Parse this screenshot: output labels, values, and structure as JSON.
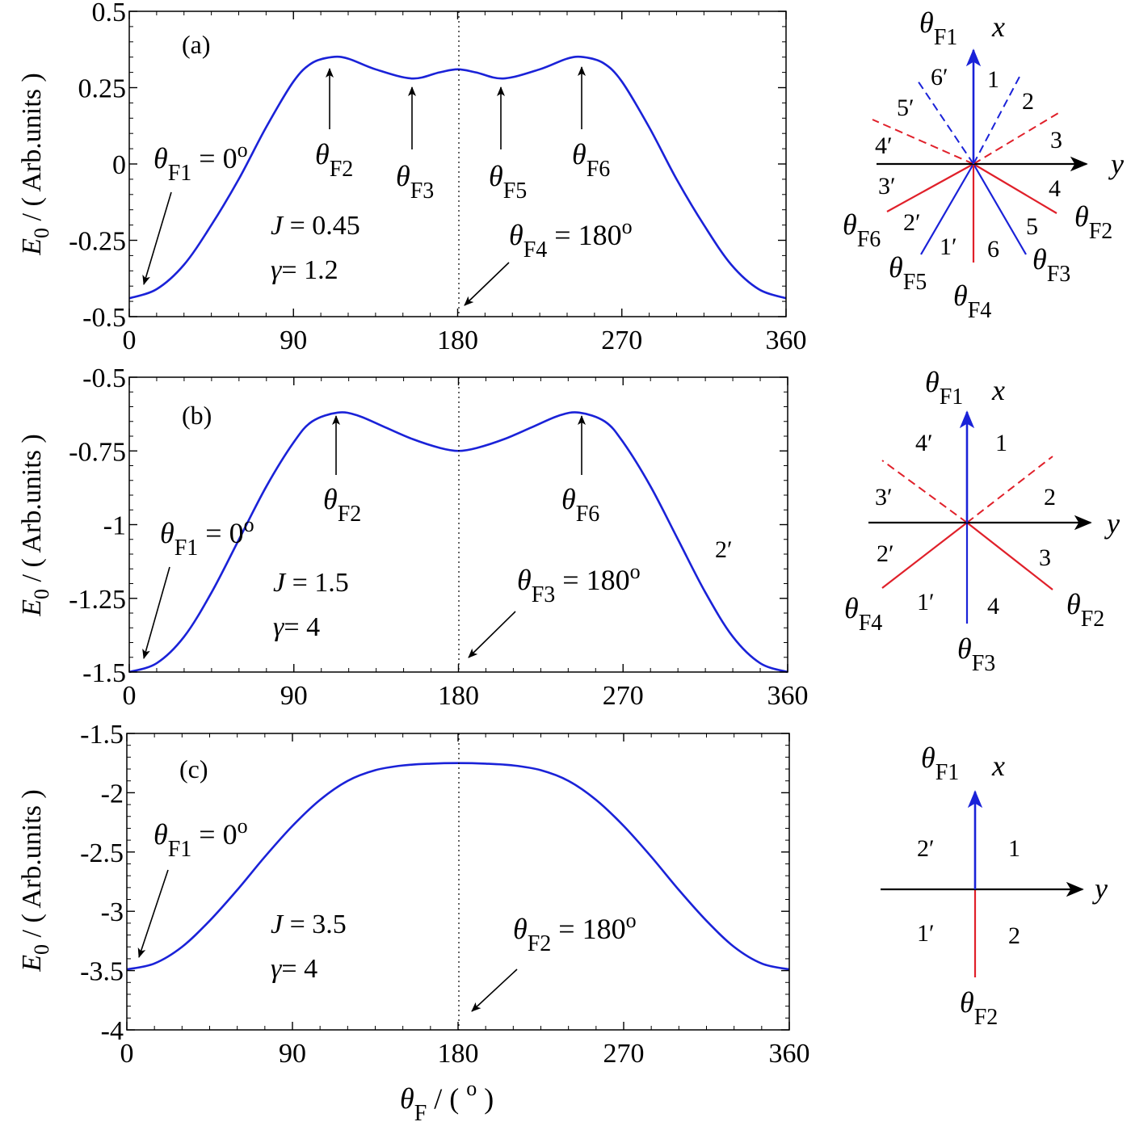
{
  "chart_data": [
    {
      "type": "line",
      "panel": "(a)",
      "xlabel_text": "θ",
      "xlabel_sub": "F",
      "xlabel_unit": " / ( ",
      "xlabel_deg": "o",
      "xlabel_close": " )",
      "ylabel_text": "E",
      "ylabel_sub": "0",
      "ylabel_rest": " / ( Arb.units )",
      "xlim": [
        0,
        360
      ],
      "ylim": [
        -0.5,
        0.5
      ],
      "xticks": [
        0,
        90,
        180,
        270,
        360
      ],
      "xtick_labels": [
        "0",
        "90",
        "180",
        "270",
        "360"
      ],
      "yticks": [
        -0.5,
        -0.25,
        0,
        0.25,
        0.5
      ],
      "ytick_labels": [
        "-0.5",
        "-0.25",
        "0",
        "0.25",
        "0.5"
      ],
      "series": [
        {
          "x": [
            0,
            15,
            30,
            45,
            60,
            75,
            90,
            100,
            111,
            120,
            135,
            155,
            170,
            180,
            190,
            205,
            225,
            240,
            249,
            260,
            270,
            285,
            300,
            315,
            330,
            345,
            360
          ],
          "y": [
            -0.44,
            -0.41,
            -0.33,
            -0.2,
            -0.05,
            0.12,
            0.27,
            0.33,
            0.35,
            0.345,
            0.31,
            0.28,
            0.3,
            0.31,
            0.3,
            0.28,
            0.31,
            0.345,
            0.35,
            0.33,
            0.27,
            0.12,
            -0.05,
            -0.2,
            -0.33,
            -0.41,
            -0.44
          ]
        }
      ],
      "params": [
        {
          "sym": "J",
          "eq": " = 0.45"
        },
        {
          "sym": "γ",
          "eq": "= 1.2"
        }
      ],
      "annotations": [
        {
          "sym": "θ",
          "sub": "F1",
          "rest": " = 0",
          "sup": "o"
        },
        {
          "sym": "θ",
          "sub": "F2",
          "rest": "",
          "sup": ""
        },
        {
          "sym": "θ",
          "sub": "F3",
          "rest": "",
          "sup": ""
        },
        {
          "sym": "θ",
          "sub": "F5",
          "rest": "",
          "sup": ""
        },
        {
          "sym": "θ",
          "sub": "F6",
          "rest": "",
          "sup": ""
        },
        {
          "sym": "θ",
          "sub": "F4",
          "rest": " = 180",
          "sup": "o"
        }
      ],
      "diagram": {
        "x_label": "x",
        "y_label": "y",
        "sectors": [
          "1",
          "2",
          "3",
          "4",
          "5",
          "6",
          "6′",
          "5′",
          "4′",
          "3′",
          "2′",
          "1′"
        ],
        "angle_labels": [
          {
            "sym": "θ",
            "sub": "F1"
          },
          {
            "sym": "θ",
            "sub": "F2"
          },
          {
            "sym": "θ",
            "sub": "F3"
          },
          {
            "sym": "θ",
            "sub": "F4"
          },
          {
            "sym": "θ",
            "sub": "F5"
          },
          {
            "sym": "θ",
            "sub": "F6"
          }
        ]
      }
    },
    {
      "type": "line",
      "panel": "(b)",
      "ylabel_text": "E",
      "ylabel_sub": "0",
      "ylabel_rest": " / ( Arb.units )",
      "xlim": [
        0,
        360
      ],
      "ylim": [
        -1.5,
        -0.5
      ],
      "xticks": [
        0,
        90,
        180,
        270,
        360
      ],
      "xtick_labels": [
        "0",
        "90",
        "180",
        "270",
        "360"
      ],
      "yticks": [
        -1.5,
        -1.25,
        -1,
        -0.75,
        -0.5
      ],
      "ytick_labels": [
        "-1.5",
        "-1.25",
        "-1",
        "-0.75",
        "-0.5"
      ],
      "series": [
        {
          "x": [
            0,
            15,
            30,
            45,
            60,
            75,
            90,
            100,
            114,
            125,
            140,
            155,
            170,
            180,
            190,
            205,
            220,
            235,
            246,
            260,
            270,
            285,
            300,
            315,
            330,
            345,
            360
          ],
          "y": [
            -1.5,
            -1.47,
            -1.38,
            -1.23,
            -1.05,
            -0.87,
            -0.72,
            -0.65,
            -0.62,
            -0.63,
            -0.67,
            -0.71,
            -0.74,
            -0.75,
            -0.74,
            -0.71,
            -0.67,
            -0.63,
            -0.62,
            -0.65,
            -0.72,
            -0.87,
            -1.05,
            -1.23,
            -1.38,
            -1.47,
            -1.5
          ]
        }
      ],
      "params": [
        {
          "sym": "J",
          "eq": " = 1.5"
        },
        {
          "sym": "γ",
          "eq": "= 4"
        }
      ],
      "annotations": [
        {
          "sym": "θ",
          "sub": "F1",
          "rest": " = 0",
          "sup": "o"
        },
        {
          "sym": "θ",
          "sub": "F2",
          "rest": "",
          "sup": ""
        },
        {
          "sym": "θ",
          "sub": "F6",
          "rest": "",
          "sup": ""
        },
        {
          "sym": "θ",
          "sub": "F3",
          "rest": " = 180",
          "sup": "o"
        }
      ],
      "stray_label": "2′",
      "diagram": {
        "x_label": "x",
        "y_label": "y",
        "sectors": [
          "1",
          "2",
          "3",
          "4",
          "4′",
          "3′",
          "2′",
          "1′"
        ],
        "angle_labels": [
          {
            "sym": "θ",
            "sub": "F1"
          },
          {
            "sym": "θ",
            "sub": "F2"
          },
          {
            "sym": "θ",
            "sub": "F3"
          },
          {
            "sym": "θ",
            "sub": "F4"
          }
        ]
      }
    },
    {
      "type": "line",
      "panel": "(c)",
      "ylabel_text": "E",
      "ylabel_sub": "0",
      "ylabel_rest": " / ( Arb.units )",
      "xlim": [
        0,
        360
      ],
      "ylim": [
        -4,
        -1.5
      ],
      "xticks": [
        0,
        90,
        180,
        270,
        360
      ],
      "xtick_labels": [
        "0",
        "90",
        "180",
        "270",
        "360"
      ],
      "yticks": [
        -4,
        -3.5,
        -3,
        -2.5,
        -2,
        -1.5
      ],
      "ytick_labels": [
        "-4",
        "-3.5",
        "-3",
        "-2.5",
        "-2",
        "-1.5"
      ],
      "series": [
        {
          "x": [
            0,
            15,
            30,
            45,
            60,
            75,
            90,
            105,
            120,
            135,
            150,
            165,
            180,
            195,
            210,
            225,
            240,
            255,
            270,
            285,
            300,
            315,
            330,
            345,
            360
          ],
          "y": [
            -3.49,
            -3.44,
            -3.3,
            -3.08,
            -2.82,
            -2.54,
            -2.28,
            -2.06,
            -1.9,
            -1.81,
            -1.77,
            -1.755,
            -1.75,
            -1.755,
            -1.77,
            -1.81,
            -1.9,
            -2.06,
            -2.28,
            -2.54,
            -2.82,
            -3.08,
            -3.3,
            -3.44,
            -3.49
          ]
        }
      ],
      "params": [
        {
          "sym": "J",
          "eq": " = 3.5"
        },
        {
          "sym": "γ",
          "eq": "= 4"
        }
      ],
      "annotations": [
        {
          "sym": "θ",
          "sub": "F1",
          "rest": " = 0",
          "sup": "o"
        },
        {
          "sym": "θ",
          "sub": "F2",
          "rest": " = 180",
          "sup": "o"
        }
      ],
      "diagram": {
        "x_label": "x",
        "y_label": "y",
        "sectors": [
          "1",
          "2",
          "2′",
          "1′"
        ],
        "angle_labels": [
          {
            "sym": "θ",
            "sub": "F1"
          },
          {
            "sym": "θ",
            "sub": "F2"
          }
        ]
      }
    }
  ],
  "colors": {
    "curve": "#1a22d8",
    "diagram_blue": "#1a22d8",
    "diagram_red": "#e0202a",
    "axis": "#000000"
  }
}
